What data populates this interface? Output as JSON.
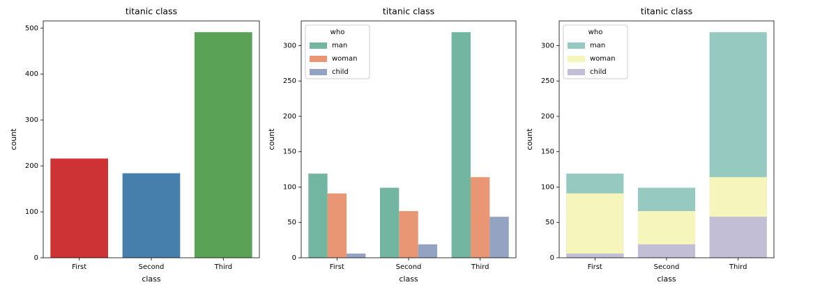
{
  "chart_data": [
    {
      "type": "bar",
      "title": "titanic class",
      "x_label": "class",
      "y_label": "count",
      "categories": [
        "First",
        "Second",
        "Third"
      ],
      "values": [
        216,
        184,
        491
      ],
      "colors": [
        "#cd3235",
        "#467eac",
        "#5aa356"
      ],
      "ylim": [
        0,
        515.55
      ],
      "yticks": [
        0,
        100,
        200,
        300,
        400,
        500
      ]
    },
    {
      "type": "bar",
      "barmode": "group",
      "title": "titanic class",
      "x_label": "class",
      "y_label": "count",
      "categories": [
        "First",
        "Second",
        "Third"
      ],
      "series": [
        {
          "name": "man",
          "color": "#72b6a1",
          "values": [
            119,
            99,
            319
          ]
        },
        {
          "name": "woman",
          "color": "#e99675",
          "values": [
            91,
            66,
            114
          ]
        },
        {
          "name": "child",
          "color": "#95a3c3",
          "values": [
            6,
            19,
            58
          ]
        }
      ],
      "legend_title": "who",
      "legend": "upper left",
      "ylim": [
        0,
        334.95
      ],
      "yticks": [
        0,
        50,
        100,
        150,
        200,
        250,
        300
      ]
    },
    {
      "type": "bar",
      "barmode": "overlay",
      "title": "titanic class",
      "x_label": "class",
      "y_label": "count",
      "categories": [
        "First",
        "Second",
        "Third"
      ],
      "series": [
        {
          "name": "man",
          "color": "#96cac1",
          "values": [
            119,
            99,
            319
          ]
        },
        {
          "name": "woman",
          "color": "#f6f6bc",
          "values": [
            91,
            66,
            114
          ]
        },
        {
          "name": "child",
          "color": "#c1bed6",
          "values": [
            6,
            19,
            58
          ]
        }
      ],
      "legend_title": "who",
      "legend": "upper left",
      "ylim": [
        0,
        334.95
      ],
      "yticks": [
        0,
        50,
        100,
        150,
        200,
        250,
        300
      ]
    }
  ]
}
